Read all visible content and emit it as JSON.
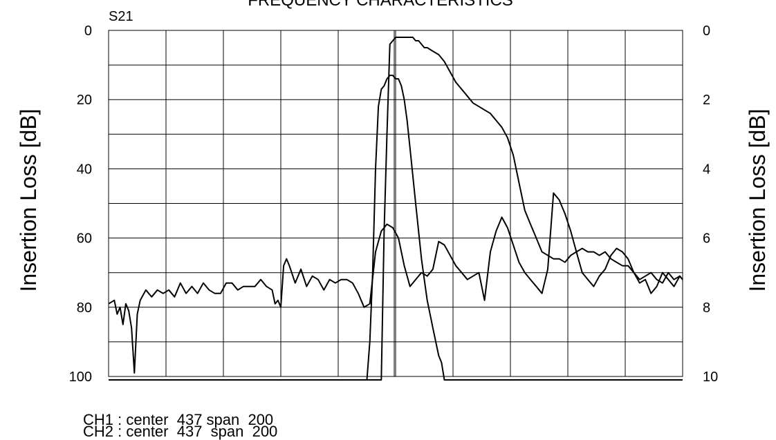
{
  "chart_data": {
    "type": "line",
    "title": "FREQUENCY CHARACTERISTICS",
    "trace_label": "S21",
    "ylabel_left": "Insertion Loss [dB]",
    "ylabel_right": "Insertion Loss [dB]",
    "y_left_ticks": [
      "0",
      "20",
      "40",
      "60",
      "80",
      "100"
    ],
    "y_right_ticks": [
      "0",
      "2",
      "4",
      "6",
      "8",
      "10"
    ],
    "ylim_left": [
      0,
      100
    ],
    "ylim_right": [
      0,
      10
    ],
    "xlim": [
      337,
      537
    ],
    "grid": true,
    "series": [
      {
        "axis": "left",
        "x": [
          337,
          339,
          340,
          341,
          342,
          343,
          344,
          345,
          346,
          347,
          348,
          350,
          352,
          354,
          356,
          358,
          360,
          362,
          364,
          366,
          368,
          370,
          372,
          374,
          376,
          378,
          380,
          382,
          384,
          386,
          388,
          390,
          392,
          394,
          395,
          396,
          397,
          398,
          399,
          400,
          402,
          404,
          406,
          408,
          410,
          412,
          414,
          416,
          418,
          420,
          422,
          424,
          426,
          428,
          430,
          432,
          434,
          436,
          438,
          440,
          442,
          444,
          446,
          448,
          450,
          452,
          454,
          456,
          458,
          460,
          462,
          464,
          466,
          468,
          470,
          472,
          474,
          476,
          478,
          480,
          482,
          484,
          486,
          488,
          490,
          492,
          494,
          496,
          498,
          500,
          502,
          504,
          506,
          508,
          510,
          512,
          514,
          516,
          518,
          520,
          522,
          524,
          526,
          528,
          530,
          532,
          534,
          536,
          537
        ],
        "values": [
          79,
          78,
          82,
          80,
          85,
          79,
          81,
          86,
          99,
          82,
          78,
          75,
          77,
          75,
          76,
          75,
          77,
          73,
          76,
          74,
          76,
          73,
          75,
          76,
          76,
          73,
          73,
          75,
          74,
          74,
          74,
          72,
          74,
          75,
          79,
          78,
          80,
          68,
          66,
          68,
          73,
          69,
          74,
          71,
          72,
          75,
          72,
          73,
          72,
          72,
          73,
          76,
          80,
          79,
          64,
          58,
          56,
          57,
          60,
          68,
          74,
          72,
          70,
          71,
          69,
          61,
          62,
          65,
          68,
          70,
          72,
          71,
          70,
          78,
          64,
          58,
          54,
          57,
          62,
          67,
          70,
          72,
          74,
          76,
          69,
          47,
          49,
          53,
          58,
          64,
          70,
          72,
          74,
          71,
          69,
          65,
          63,
          64,
          66,
          70,
          73,
          72,
          76,
          74,
          70,
          72,
          74,
          71,
          72
        ]
      },
      {
        "axis": "left",
        "x": [
          337,
          352,
          367,
          382,
          397,
          412,
          427,
          432,
          433,
          434,
          435,
          436,
          437,
          438,
          439,
          440,
          441,
          442,
          443,
          444,
          445,
          446,
          447,
          448,
          450,
          452,
          454,
          456,
          458,
          460,
          462,
          464,
          466,
          468,
          470,
          472,
          474,
          476,
          478,
          480,
          482,
          484,
          486,
          488,
          490,
          492,
          494,
          496,
          498,
          500,
          502,
          504,
          506,
          508,
          510,
          512,
          514,
          516,
          518,
          520,
          522,
          524,
          526,
          528,
          530,
          532,
          534,
          536,
          537
        ],
        "values": [
          101,
          101,
          101,
          101,
          101,
          101,
          101,
          101,
          58,
          30,
          4,
          3,
          2,
          2,
          2,
          2,
          2,
          2,
          2,
          3,
          3,
          4,
          5,
          5,
          6,
          7,
          9,
          12,
          15,
          17,
          19,
          21,
          22,
          23,
          24,
          26,
          28,
          31,
          36,
          44,
          52,
          56,
          60,
          64,
          65,
          66,
          66,
          67,
          65,
          64,
          63,
          64,
          64,
          65,
          64,
          66,
          67,
          68,
          68,
          70,
          72,
          71,
          70,
          72,
          73,
          70,
          72,
          71,
          72
        ]
      },
      {
        "axis": "right",
        "x": [
          337,
          367,
          397,
          427,
          428,
          429,
          430,
          431,
          432,
          433,
          434,
          435,
          436,
          437,
          438,
          439,
          440,
          441,
          442,
          443,
          444,
          445,
          446,
          447,
          448,
          449,
          450,
          451,
          452,
          453,
          454,
          455,
          456,
          457,
          458,
          459,
          460,
          462,
          472,
          492,
          512,
          537
        ],
        "values": [
          10.1,
          10.1,
          10.1,
          10.1,
          9.0,
          7.0,
          4.0,
          2.2,
          1.7,
          1.6,
          1.4,
          1.3,
          1.3,
          1.4,
          1.4,
          1.6,
          2.0,
          2.6,
          3.4,
          4.2,
          5.0,
          5.8,
          6.6,
          7.2,
          7.8,
          8.2,
          8.6,
          9.0,
          9.4,
          9.6,
          10.1,
          10.1,
          10.1,
          10.1,
          10.1,
          10.1,
          10.1,
          10.1,
          10.1,
          10.1,
          10.1,
          10.1
        ]
      }
    ]
  },
  "footer": {
    "ch1": "CH1 : center  437 span  200",
    "ch2": "CH2 : center  437  span  200"
  }
}
